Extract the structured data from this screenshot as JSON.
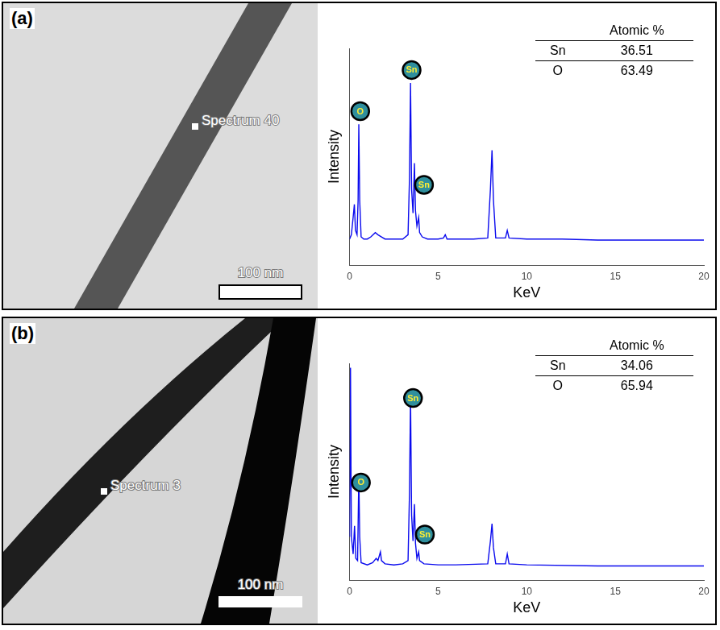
{
  "chart_data": [
    {
      "type": "line",
      "panel": "(a)",
      "image": {
        "spot_label": "Spectrum 40",
        "scale_bar": "100 nm"
      },
      "x_label": "KeV",
      "y_label": "Intensity",
      "color": "#0a0aee",
      "xlim": [
        0,
        20
      ],
      "xticks": [
        0,
        5,
        10,
        15,
        20
      ],
      "ylim": [
        0,
        100
      ],
      "grid": false,
      "tick_labels": "x",
      "x": [
        0,
        0.1,
        0.2,
        0.27,
        0.33,
        0.42,
        0.48,
        0.52,
        0.57,
        0.65,
        0.8,
        1.0,
        1.2,
        1.45,
        1.6,
        1.8,
        2.0,
        2.5,
        3.0,
        3.3,
        3.38,
        3.44,
        3.5,
        3.58,
        3.66,
        3.72,
        3.8,
        3.9,
        3.95,
        4.1,
        4.4,
        5.0,
        5.3,
        5.4,
        5.5,
        6.0,
        7.0,
        7.8,
        7.95,
        8.04,
        8.12,
        8.25,
        8.8,
        8.9,
        9.0,
        10,
        12,
        14,
        16,
        18,
        20
      ],
      "values": [
        12,
        14,
        22,
        28,
        16,
        14,
        30,
        65,
        30,
        13,
        12,
        12,
        13,
        15,
        14,
        13,
        12,
        12,
        12,
        14,
        40,
        84,
        35,
        24,
        47,
        25,
        18,
        22,
        15,
        13,
        12,
        12,
        12.5,
        14,
        12,
        12,
        12,
        12.5,
        35,
        53,
        30,
        12.5,
        12.5,
        16,
        12.5,
        12,
        12,
        11.5,
        11.5,
        11.5,
        11.5
      ],
      "annotations": [
        {
          "text": "O",
          "x": 0.6,
          "y": 71
        },
        {
          "text": "Sn",
          "x": 3.5,
          "y": 90
        },
        {
          "text": "Sn",
          "x": 4.2,
          "y": 37
        }
      ],
      "table": {
        "header": [
          "",
          "Atomic %"
        ],
        "rows": [
          [
            "Sn",
            36.51
          ],
          [
            "O",
            63.49
          ]
        ]
      }
    },
    {
      "type": "line",
      "panel": "(b)",
      "image": {
        "spot_label": "Spectrum 3",
        "scale_bar": "100 nm"
      },
      "x_label": "KeV",
      "y_label": "Intensity",
      "color": "#0a0aee",
      "xlim": [
        0,
        20
      ],
      "xticks": [
        0,
        5,
        10,
        15,
        20
      ],
      "ylim": [
        0,
        100
      ],
      "grid": false,
      "tick_labels": "x",
      "x": [
        0,
        0.05,
        0.1,
        0.2,
        0.28,
        0.35,
        0.45,
        0.48,
        0.52,
        0.57,
        0.65,
        1.0,
        1.3,
        1.5,
        1.6,
        1.74,
        1.8,
        2.0,
        2.5,
        3.0,
        3.3,
        3.38,
        3.44,
        3.5,
        3.58,
        3.66,
        3.72,
        3.8,
        3.9,
        3.95,
        4.2,
        5.0,
        6.0,
        7.8,
        7.95,
        8.04,
        8.12,
        8.25,
        8.8,
        8.9,
        9.0,
        10,
        14,
        20
      ],
      "values": [
        20,
        98,
        20,
        12,
        25,
        10,
        9,
        25,
        48,
        20,
        8,
        7,
        8,
        10,
        9,
        13,
        9,
        7.5,
        7,
        7.5,
        9,
        40,
        85,
        30,
        18,
        35,
        17,
        10,
        13,
        9,
        7.5,
        7,
        7,
        7.5,
        18,
        26,
        15,
        7.5,
        7.5,
        12,
        7.5,
        7,
        6.5,
        6.5
      ],
      "annotations": [
        {
          "text": "O",
          "x": 0.64,
          "y": 45
        },
        {
          "text": "Sn",
          "x": 3.58,
          "y": 84
        },
        {
          "text": "Sn",
          "x": 4.25,
          "y": 21
        }
      ],
      "table": {
        "header": [
          "",
          "Atomic %"
        ],
        "rows": [
          [
            "Sn",
            34.06
          ],
          [
            "O",
            65.94
          ]
        ]
      }
    }
  ]
}
